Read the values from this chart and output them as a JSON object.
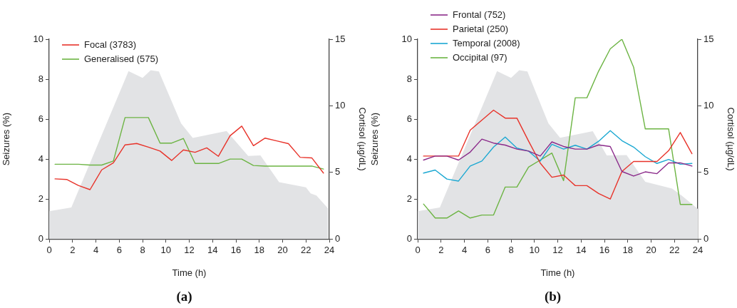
{
  "chart_data": [
    {
      "type": "line",
      "title": "(a)",
      "xlabel": "Time (h)",
      "ylabel": "Seizures (%)",
      "y2label": "Cortisol (µg/dL)",
      "legend": "top left",
      "grid": false,
      "marker": "none",
      "line_style": "solid",
      "x": [
        0.5,
        1.5,
        2.5,
        3.5,
        4.5,
        5.5,
        6.5,
        7.5,
        8.5,
        9.5,
        10.5,
        11.5,
        12.5,
        13.5,
        14.5,
        15.5,
        16.5,
        17.5,
        18.5,
        19.5,
        20.5,
        21.5,
        22.5,
        23.5
      ],
      "xlim": [
        0,
        24
      ],
      "xticks": [
        0,
        2,
        4,
        6,
        8,
        10,
        12,
        14,
        16,
        18,
        20,
        22,
        24
      ],
      "ylim": [
        0,
        10
      ],
      "yticks": [
        0,
        2,
        4,
        6,
        8,
        10
      ],
      "y2lim": [
        0,
        15
      ],
      "y2ticks": [
        0,
        5,
        10,
        15
      ],
      "series": [
        {
          "type": "area",
          "axis": "y2",
          "color": "#e2e3e5",
          "x": [
            0,
            1.9,
            6.8,
            8.0,
            8.7,
            9.4,
            11.3,
            12.3,
            15.2,
            17.05,
            18.1,
            19.7,
            22.0,
            22.4,
            22.9,
            23.9
          ],
          "values": [
            2.08,
            2.37,
            12.6,
            12.1,
            12.67,
            12.58,
            8.68,
            7.58,
            8.11,
            6.23,
            6.28,
            4.27,
            3.88,
            3.43,
            3.26,
            2.28
          ]
        },
        {
          "name": "Focal (3783)",
          "color": "#e8332a",
          "values": [
            3.01,
            2.98,
            2.68,
            2.47,
            3.46,
            3.81,
            4.71,
            4.78,
            4.6,
            4.4,
            3.93,
            4.46,
            4.34,
            4.56,
            4.14,
            5.17,
            5.65,
            4.67,
            5.05,
            4.91,
            4.77,
            4.09,
            4.06,
            3.3
          ]
        },
        {
          "name": "Generalised (575)",
          "color": "#6cb443",
          "values": [
            3.74,
            3.74,
            3.74,
            3.7,
            3.7,
            3.9,
            6.08,
            6.08,
            6.08,
            4.8,
            4.8,
            5.03,
            3.78,
            3.78,
            3.78,
            4.0,
            4.0,
            3.68,
            3.65,
            3.65,
            3.65,
            3.65,
            3.65,
            3.5
          ]
        }
      ]
    },
    {
      "type": "line",
      "title": "(b)",
      "xlabel": "Time (h)",
      "ylabel": "Seizures (%)",
      "y2label": "Cortisol (µg/dL)",
      "legend": "top left",
      "grid": false,
      "marker": "none",
      "line_style": "solid",
      "x": [
        0.5,
        1.5,
        2.5,
        3.5,
        4.5,
        5.5,
        6.5,
        7.5,
        8.5,
        9.5,
        10.5,
        11.5,
        12.5,
        13.5,
        14.5,
        15.5,
        16.5,
        17.5,
        18.5,
        19.5,
        20.5,
        21.5,
        22.5,
        23.5
      ],
      "xlim": [
        0,
        24
      ],
      "xticks": [
        0,
        2,
        4,
        6,
        8,
        10,
        12,
        14,
        16,
        18,
        20,
        22,
        24
      ],
      "ylim": [
        0,
        10
      ],
      "yticks": [
        0,
        2,
        4,
        6,
        8,
        10
      ],
      "y2lim": [
        0,
        15
      ],
      "y2ticks": [
        0,
        5,
        10,
        15
      ],
      "series": [
        {
          "type": "area",
          "axis": "y2",
          "color": "#e2e3e5",
          "x": [
            0,
            1.9,
            6.8,
            8.0,
            8.7,
            9.4,
            11.2,
            12.2,
            15.0,
            16.2,
            17.9,
            19.5,
            21.8,
            22.6,
            24
          ],
          "values": [
            2.08,
            2.37,
            12.6,
            12.1,
            12.67,
            12.58,
            8.68,
            7.6,
            8.1,
            6.27,
            6.3,
            4.3,
            3.78,
            3.28,
            2.26
          ]
        },
        {
          "name": "Frontal (752)",
          "color": "#8b2a8a",
          "values": [
            3.95,
            4.15,
            4.15,
            3.95,
            4.35,
            5.0,
            4.8,
            4.7,
            4.5,
            4.4,
            4.15,
            4.86,
            4.63,
            4.5,
            4.5,
            4.71,
            4.63,
            3.38,
            3.15,
            3.36,
            3.27,
            3.81,
            3.81,
            3.65
          ]
        },
        {
          "name": "Parietal (250)",
          "color": "#e8332a",
          "values": [
            4.15,
            4.15,
            4.15,
            4.15,
            5.45,
            5.95,
            6.45,
            6.05,
            6.05,
            4.9,
            3.8,
            3.09,
            3.2,
            2.67,
            2.67,
            2.28,
            2.0,
            3.38,
            3.88,
            3.88,
            3.88,
            4.42,
            5.33,
            4.27
          ]
        },
        {
          "name": "Temporal (2008)",
          "color": "#1ba8d2",
          "values": [
            3.3,
            3.45,
            3.0,
            2.9,
            3.65,
            3.9,
            4.6,
            5.1,
            4.55,
            4.4,
            3.9,
            4.74,
            4.5,
            4.69,
            4.5,
            4.89,
            5.42,
            4.92,
            4.6,
            4.12,
            3.78,
            3.98,
            3.74,
            3.78
          ]
        },
        {
          "name": "Occipital (97)",
          "color": "#6cb443",
          "values": [
            1.75,
            1.05,
            1.05,
            1.4,
            1.05,
            1.2,
            1.2,
            2.6,
            2.6,
            3.6,
            3.95,
            4.3,
            2.92,
            7.07,
            7.07,
            8.4,
            9.52,
            10.0,
            8.6,
            5.51,
            5.51,
            5.51,
            1.73,
            1.73
          ]
        }
      ]
    }
  ]
}
